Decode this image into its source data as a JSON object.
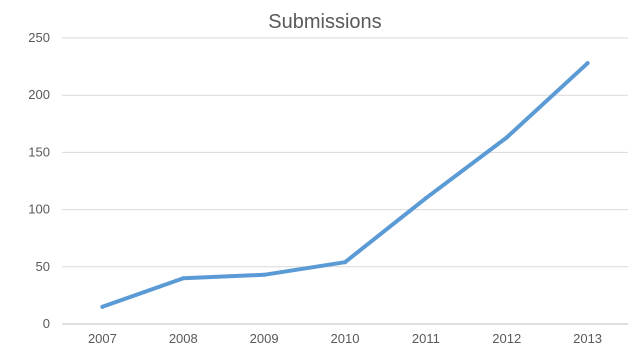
{
  "chart_data": {
    "type": "line",
    "title": "Submissions",
    "xlabel": "",
    "ylabel": "",
    "categories": [
      "2007",
      "2008",
      "2009",
      "2010",
      "2011",
      "2012",
      "2013"
    ],
    "series": [
      {
        "values": [
          15,
          40,
          43,
          54,
          110,
          163,
          228
        ]
      }
    ],
    "ylim": [
      0,
      250
    ],
    "yticks": [
      0,
      50,
      100,
      150,
      200,
      250
    ],
    "grid": true,
    "legend": "none",
    "colors": {
      "line": "#5b9bd5",
      "grid": "#d9d9d9",
      "text": "#595959"
    }
  }
}
